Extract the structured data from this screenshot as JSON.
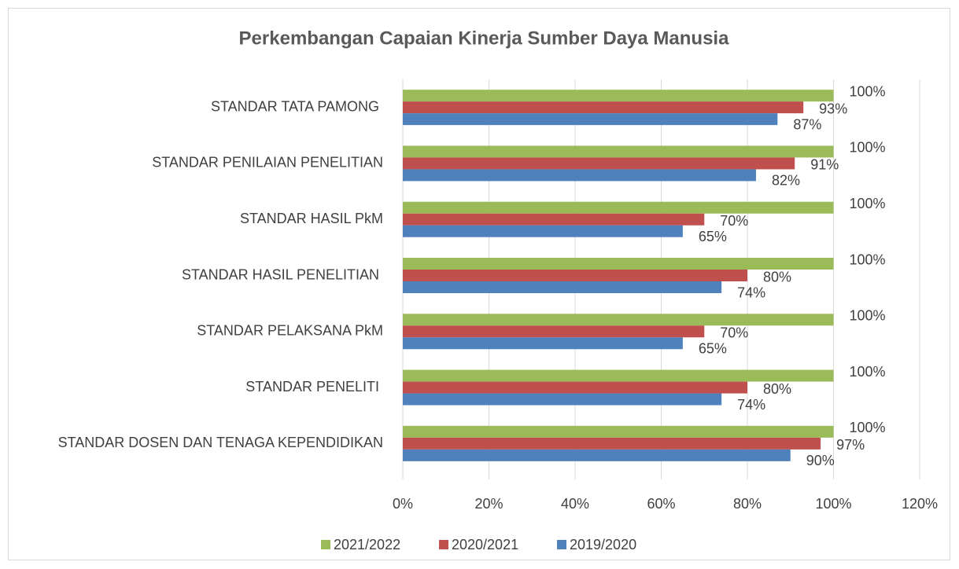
{
  "chart_data": {
    "type": "hbar",
    "title": "Perkembangan Capaian Kinerja Sumber Daya Manusia",
    "categories": [
      "STANDAR TATA PAMONG ",
      "STANDAR PENILAIAN PENELITIAN",
      "STANDAR HASIL PkM",
      "STANDAR HASIL PENELITIAN ",
      "STANDAR PELAKSANA PkM",
      "STANDAR PENELITI ",
      "STANDAR DOSEN DAN TENAGA KEPENDIDIKAN"
    ],
    "series": [
      {
        "name": "2021/2022",
        "color": "#9bbb59",
        "values": [
          100,
          100,
          100,
          100,
          100,
          100,
          100
        ],
        "value_labels": [
          "100%",
          "100%",
          "100%",
          "100%",
          "100%",
          "100%",
          "100%"
        ]
      },
      {
        "name": "2020/2021",
        "color": "#c0504d",
        "values": [
          93,
          91,
          70,
          80,
          70,
          80,
          97
        ],
        "value_labels": [
          "93%",
          "91%",
          "70%",
          "80%",
          "70%",
          "80%",
          "97%"
        ]
      },
      {
        "name": "2019/2020",
        "color": "#4f81bd",
        "values": [
          87,
          82,
          65,
          74,
          65,
          74,
          90
        ],
        "value_labels": [
          "87%",
          "82%",
          "65%",
          "74%",
          "65%",
          "74%",
          "90%"
        ]
      }
    ],
    "xlim": [
      0,
      120
    ],
    "xticks": [
      {
        "value": 0,
        "label": "0%"
      },
      {
        "value": 20,
        "label": "20%"
      },
      {
        "value": 40,
        "label": "40%"
      },
      {
        "value": 60,
        "label": "60%"
      },
      {
        "value": 80,
        "label": "80%"
      },
      {
        "value": 100,
        "label": "100%"
      },
      {
        "value": 120,
        "label": "120%"
      }
    ],
    "grid": true,
    "legend": "bottom"
  }
}
